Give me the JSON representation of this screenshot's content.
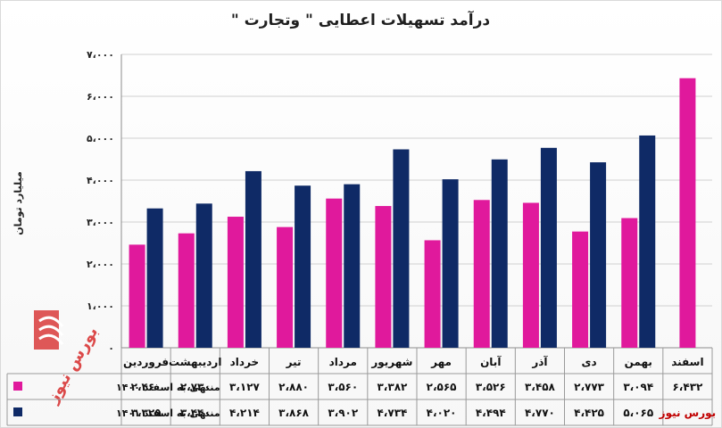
{
  "chart_data": {
    "type": "bar",
    "title": "درآمد تسهیلات اعطایی \" وتجارت \"",
    "ylabel": "میلیارد تومان",
    "ylim": [
      0,
      7000
    ],
    "yticks": [
      "۰",
      "۱،۰۰۰",
      "۲،۰۰۰",
      "۳،۰۰۰",
      "۴،۰۰۰",
      "۵،۰۰۰",
      "۶،۰۰۰",
      "۷،۰۰۰"
    ],
    "grid": true,
    "categories": [
      "فروردین",
      "اردیبهشت",
      "خرداد",
      "تیر",
      "مرداد",
      "شهریور",
      "مهر",
      "آبان",
      "آذر",
      "دی",
      "بهمن",
      "اسفند"
    ],
    "series": [
      {
        "name": "منتهی به اسفند ۱۴۰۰",
        "color": "#e0199c",
        "values": [
          2460,
          2730,
          3127,
          2880,
          3560,
          3382,
          2565,
          3526,
          3458,
          2773,
          3094,
          6432
        ],
        "labels": [
          "۲،۴۶۰",
          "۲،۷۳۰",
          "۳،۱۲۷",
          "۲،۸۸۰",
          "۳،۵۶۰",
          "۳،۳۸۲",
          "۲،۵۶۵",
          "۳،۵۲۶",
          "۳،۴۵۸",
          "۲،۷۷۳",
          "۳،۰۹۴",
          "۶،۴۳۲"
        ]
      },
      {
        "name": "منتهی به اسفند ۱۴۰۱",
        "color": "#0f2a66",
        "values": [
          3325,
          3440,
          4214,
          3868,
          3902,
          4734,
          4020,
          4494,
          4770,
          4425,
          5065,
          null
        ],
        "labels": [
          "۳،۳۲۵",
          "۳،۴۴۰",
          "۴،۲۱۴",
          "۳،۸۶۸",
          "۳،۹۰۲",
          "۴،۷۳۴",
          "۴،۰۲۰",
          "۴،۴۹۴",
          "۴،۷۷۰",
          "۴،۴۲۵",
          "۵،۰۶۵",
          ""
        ]
      }
    ],
    "legend_placement": "table-left"
  },
  "source": "بورس نیوز",
  "watermark": "بورس نیوز"
}
